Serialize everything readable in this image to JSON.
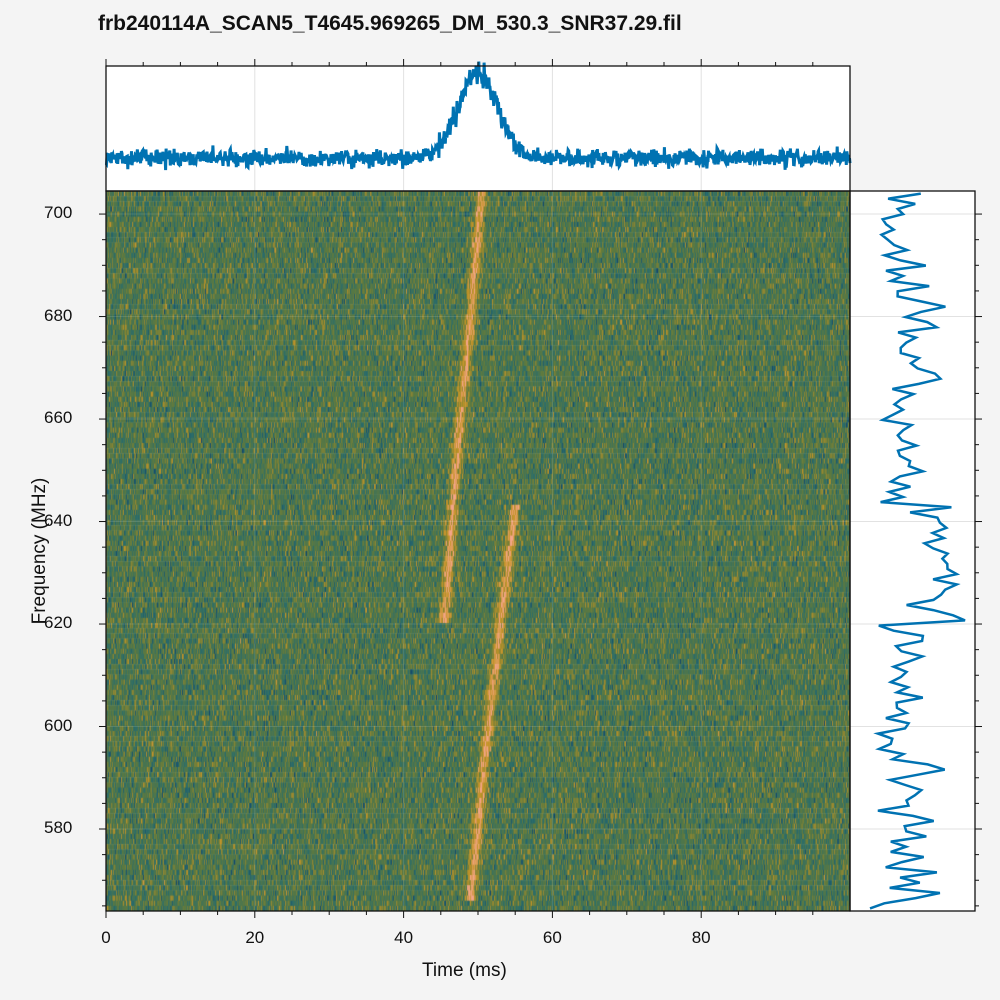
{
  "title": "frb240114A_SCAN5_T4645.969265_DM_530.3_SNR37.29.fil",
  "chart_data": [
    {
      "panel": "dynamic-spectrum",
      "type": "heatmap",
      "xlabel": "Time (ms)",
      "ylabel": "Frequency (MHz)",
      "xlim": [
        0,
        100
      ],
      "ylim": [
        564,
        704.5
      ],
      "xticks": [
        "0",
        "20",
        "40",
        "60",
        "80"
      ],
      "yticks": [
        "580",
        "600",
        "620",
        "640",
        "660",
        "680",
        "700"
      ],
      "grid": true,
      "colormap": [
        "#0b3e6e",
        "#2b6d6a",
        "#5f7a3e",
        "#c49427",
        "#f4a58a"
      ],
      "components": [
        {
          "time_ms": [
            50.5,
            49,
            47,
            45.5
          ],
          "freq_mhz": [
            704,
            680,
            650,
            620
          ]
        },
        {
          "time_ms": [
            55,
            53,
            51,
            49
          ],
          "freq_mhz": [
            643,
            620,
            595,
            566
          ]
        }
      ]
    },
    {
      "panel": "time-profile",
      "type": "line",
      "xlim": [
        0,
        100
      ],
      "peak_time_ms": 50,
      "color": "#0072b2"
    },
    {
      "panel": "spectrum",
      "type": "line",
      "ylim": [
        564,
        704.5
      ],
      "color": "#0072b2"
    }
  ]
}
